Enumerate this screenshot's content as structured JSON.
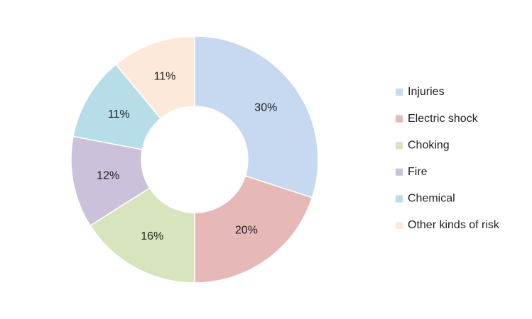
{
  "chart_data": {
    "type": "donut",
    "categories": [
      "Injuries",
      "Electric shock",
      "Choking",
      "Fire",
      "Chemical",
      "Other kinds of risk"
    ],
    "values": [
      30,
      20,
      16,
      12,
      11,
      11
    ],
    "value_labels": [
      "30%",
      "20%",
      "16%",
      "12%",
      "11%",
      "11%"
    ],
    "colors": [
      "#c6d9f1",
      "#e6b9b8",
      "#d7e4bd",
      "#ccc1da",
      "#b7dee8",
      "#fde9d9"
    ],
    "legend": "right"
  }
}
